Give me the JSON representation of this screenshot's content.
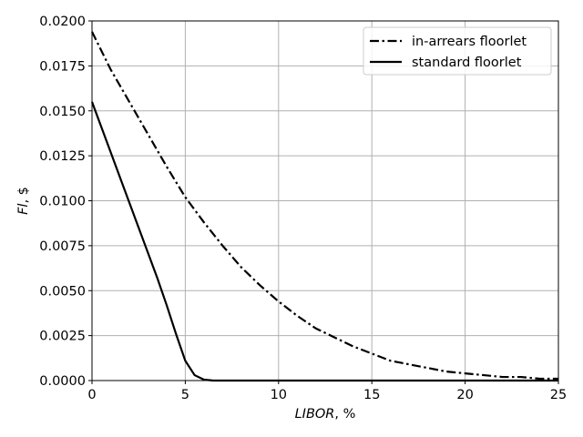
{
  "chart_data": {
    "type": "line",
    "xlabel": "LIBOR, %",
    "ylabel": "Fl, $",
    "xlim": [
      0,
      25
    ],
    "ylim": [
      0,
      0.02
    ],
    "x_ticks": [
      "0",
      "5",
      "10",
      "15",
      "20",
      "25"
    ],
    "y_ticks": [
      "0.0000",
      "0.0025",
      "0.0050",
      "0.0075",
      "0.0100",
      "0.0125",
      "0.0150",
      "0.0175",
      "0.0200"
    ],
    "grid": true,
    "legend_position": "top-right",
    "series": [
      {
        "name": "in-arrears floorlet",
        "style": "dashdot",
        "color": "#000000",
        "x": [
          0,
          1,
          2,
          3,
          4,
          5,
          6,
          7,
          8,
          9,
          10,
          11,
          12,
          13,
          14,
          15,
          16,
          17,
          18,
          19,
          20,
          21,
          22,
          23,
          24,
          25
        ],
        "y": [
          0.0194,
          0.0173,
          0.0155,
          0.0137,
          0.0119,
          0.0102,
          0.0088,
          0.0075,
          0.0063,
          0.0053,
          0.0044,
          0.0036,
          0.0029,
          0.0024,
          0.0019,
          0.0015,
          0.0011,
          0.0009,
          0.0007,
          0.0005,
          0.0004,
          0.0003,
          0.0002,
          0.0002,
          0.0001,
          0.0001
        ]
      },
      {
        "name": "standard floorlet",
        "style": "solid",
        "color": "#000000",
        "x": [
          0,
          0.5,
          1,
          1.5,
          2,
          2.5,
          3,
          3.5,
          4,
          4.5,
          5,
          5.5,
          6,
          6.5,
          7,
          8,
          10,
          15,
          20,
          25
        ],
        "y": [
          0.0155,
          0.0141,
          0.0127,
          0.0113,
          0.0099,
          0.0085,
          0.0071,
          0.0057,
          0.0042,
          0.0026,
          0.0011,
          0.0003,
          5e-05,
          0.0,
          0.0,
          0.0,
          0.0,
          0.0,
          0.0,
          0.0
        ]
      }
    ]
  }
}
